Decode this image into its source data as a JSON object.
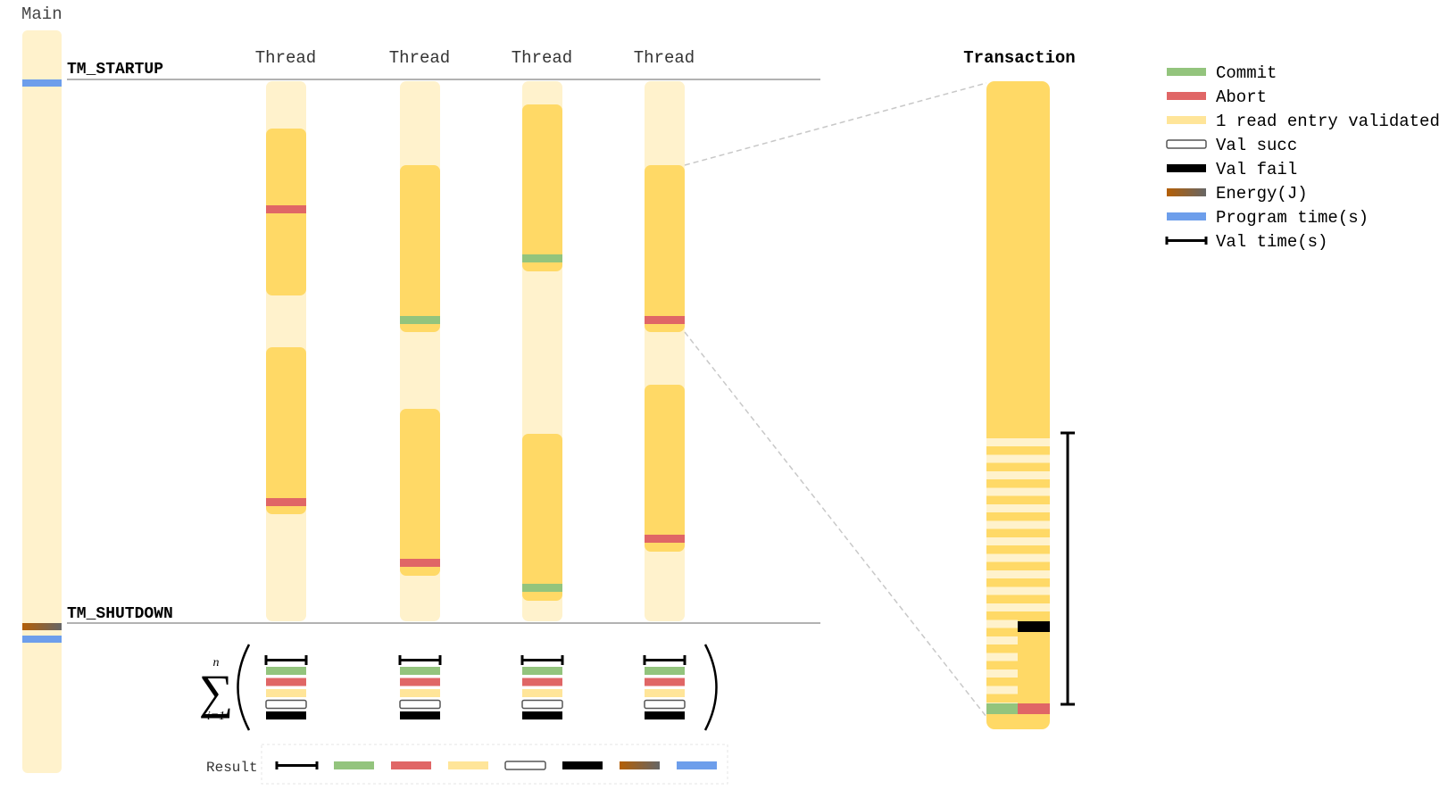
{
  "main_label": "Main",
  "tm_startup": "TM_STARTUP",
  "tm_shutdown": "TM_SHUTDOWN",
  "thread_labels": [
    "Thread",
    "Thread",
    "Thread",
    "Thread"
  ],
  "transaction_label": "Transaction",
  "result_label": "Result",
  "sum_upper": "n",
  "sum_lower": "i=1",
  "legend": [
    {
      "label": "Commit",
      "kind": "commit"
    },
    {
      "label": "Abort",
      "kind": "abort"
    },
    {
      "label": "1 read entry validated",
      "kind": "read"
    },
    {
      "label": "Val succ",
      "kind": "valsucc"
    },
    {
      "label": "Val fail",
      "kind": "valfail"
    },
    {
      "label": "Energy(J)",
      "kind": "energy"
    },
    {
      "label": "Program time(s)",
      "kind": "program"
    },
    {
      "label": "Val time(s)",
      "kind": "valtime"
    }
  ],
  "colors": {
    "commit": "#93c47d",
    "abort": "#e06666",
    "read": "#ffe599",
    "bar_light": "#fff2cc",
    "bar_dark": "#ffd966",
    "program": "#6d9eeb",
    "energy_start": "#b45f06",
    "energy_end": "#666666",
    "val_fail": "#000000",
    "text": "#000000",
    "rule": "#999999"
  },
  "threads": [
    {
      "transactions": [
        {
          "outcome": "abort"
        },
        {
          "outcome": "abort"
        }
      ]
    },
    {
      "transactions": [
        {
          "outcome": "commit"
        },
        {
          "outcome": "abort"
        }
      ]
    },
    {
      "transactions": [
        {
          "outcome": "commit"
        },
        {
          "outcome": "commit"
        }
      ]
    },
    {
      "transactions": [
        {
          "outcome": "abort"
        },
        {
          "outcome": "abort"
        }
      ]
    }
  ],
  "zoom_transaction": {
    "outcome": "commit-and-abort",
    "validated_entries": 17,
    "val_fail": true
  }
}
